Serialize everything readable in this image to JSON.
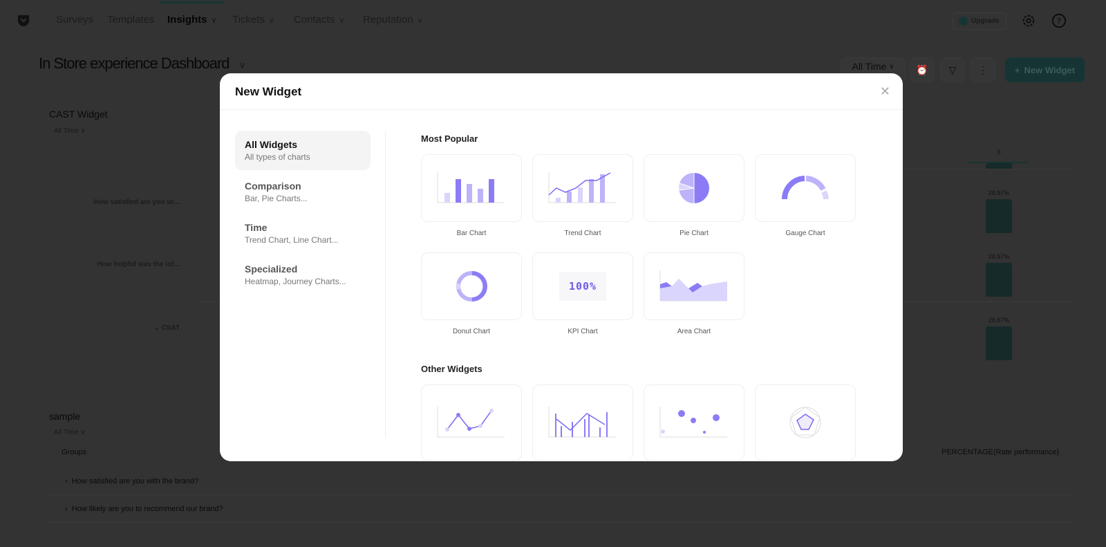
{
  "nav": {
    "items": [
      {
        "label": "Surveys"
      },
      {
        "label": "Templates"
      },
      {
        "label": "Insights",
        "active": true
      },
      {
        "label": "Tickets"
      },
      {
        "label": "Contacts"
      },
      {
        "label": "Reputation"
      }
    ],
    "upgrade": "Upgrade"
  },
  "dashboard": {
    "title": "In Store experience Dashboard",
    "time_filter": "All Time",
    "new_widget": "New Widget"
  },
  "cast_widget": {
    "title": "CAST Widget",
    "time": "All Time",
    "column_header": "5",
    "rows": [
      {
        "label": "How satisfied are you wi...",
        "value": "28.57%"
      },
      {
        "label": "How helpful was the inf...",
        "value": "28.57%"
      },
      {
        "label": "CSAT",
        "value": "28.57%"
      }
    ]
  },
  "sample_widget": {
    "title": "sample",
    "time": "All Time",
    "col_groups": "Groups",
    "col_percentage": "PERCENTAGE(Rate performance)",
    "rows": [
      "How satisfied are you with the brand?",
      "How likely are you to recommend our brand?"
    ]
  },
  "modal": {
    "title": "New Widget",
    "categories": [
      {
        "title": "All Widgets",
        "subtitle": "All types of charts"
      },
      {
        "title": "Comparison",
        "subtitle": "Bar, Pie Charts..."
      },
      {
        "title": "Time",
        "subtitle": "Trend Chart, Line Chart..."
      },
      {
        "title": "Specialized",
        "subtitle": "Heatmap, Journey Charts..."
      }
    ],
    "most_popular_heading": "Most Popular",
    "other_heading": "Other Widgets",
    "most_popular": [
      {
        "label": "Bar Chart"
      },
      {
        "label": "Trend Chart"
      },
      {
        "label": "Pie Chart"
      },
      {
        "label": "Gauge Chart"
      },
      {
        "label": "Donut Chart"
      },
      {
        "label": "KPI Chart",
        "preview": "100%"
      },
      {
        "label": "Area Chart"
      }
    ]
  },
  "colors": {
    "accent": "#8b7cf6",
    "accent_light": "#bcb3f9",
    "accent_pale": "#dad5fc",
    "teal": "#2b8d8d"
  }
}
